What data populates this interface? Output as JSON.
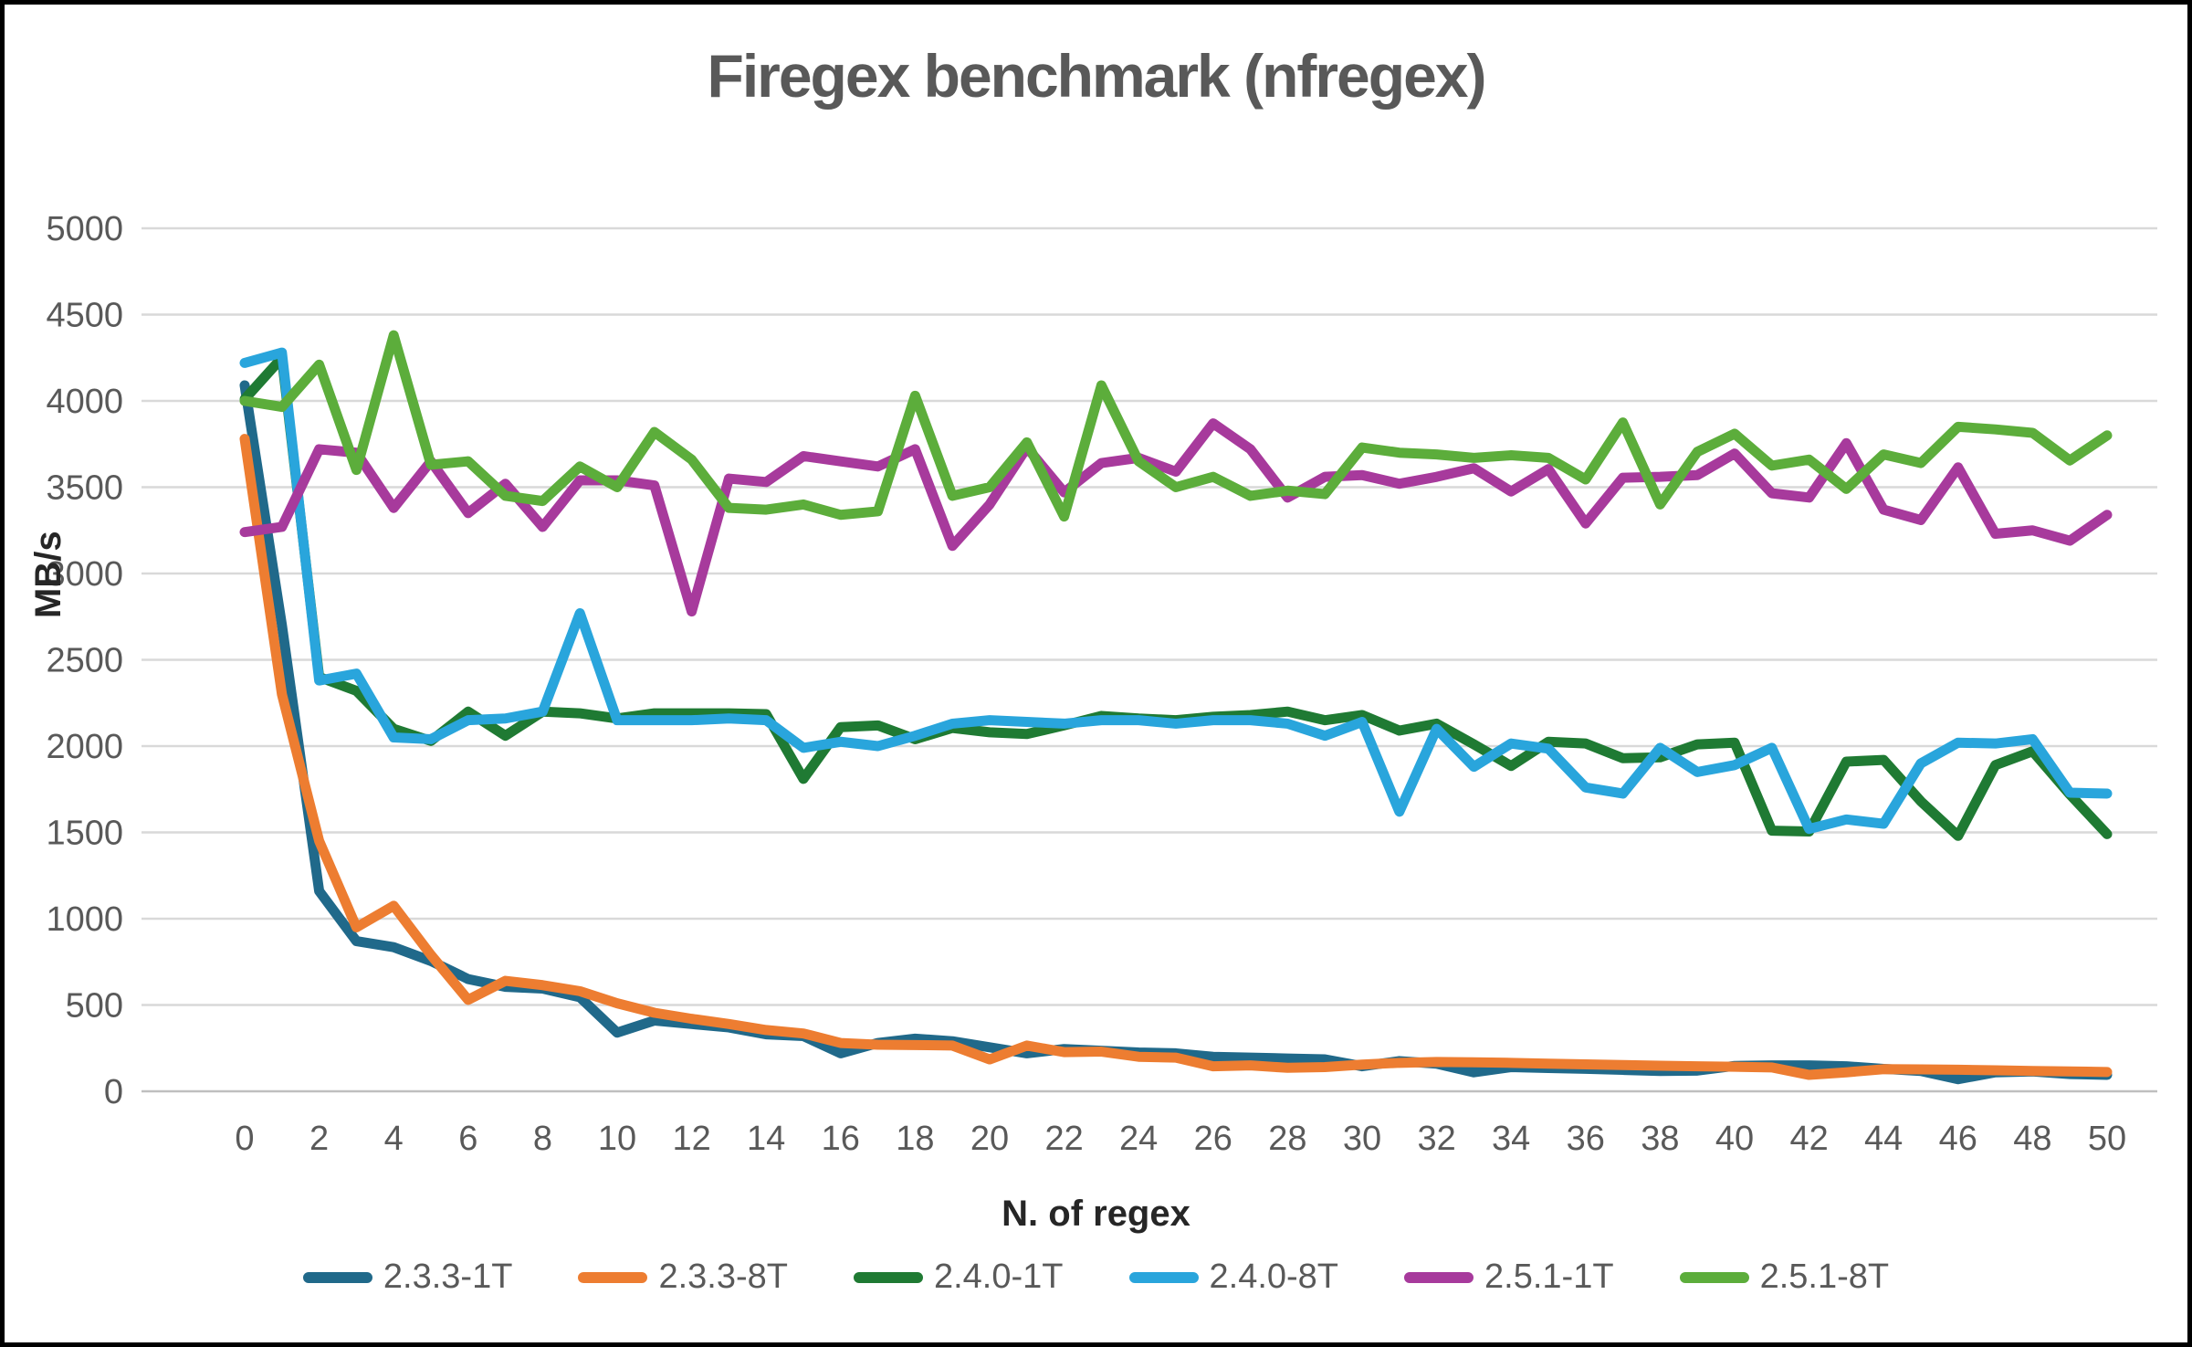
{
  "window": {
    "background": "#ffffff",
    "border_color": "#000000"
  },
  "styles": {
    "title_color": "#595959",
    "tick_label_color": "#595959",
    "axis_title_color": "#262626",
    "gridline_color": "#D9D9D9",
    "axis_line_color": "#BFBFBF",
    "line_width": 11
  },
  "chart_data": {
    "type": "line",
    "title": "Firegex benchmark (nfregex)",
    "xlabel": "N. of regex",
    "ylabel": "MB/s",
    "x": [
      0,
      1,
      2,
      3,
      4,
      5,
      6,
      7,
      8,
      9,
      10,
      11,
      12,
      13,
      14,
      15,
      16,
      17,
      18,
      19,
      20,
      21,
      22,
      23,
      24,
      25,
      26,
      27,
      28,
      29,
      30,
      31,
      32,
      33,
      34,
      35,
      36,
      37,
      38,
      39,
      40,
      41,
      42,
      43,
      44,
      45,
      46,
      47,
      48,
      49,
      50
    ],
    "x_tick_step": 2,
    "ylim": [
      0,
      5000
    ],
    "y_tick_step": 500,
    "grid": "horizontal",
    "legend_position": "bottom",
    "series": [
      {
        "name": "2.3.3-1T",
        "color": "#20698A",
        "values": [
          4090,
          2700,
          1160,
          870,
          835,
          755,
          650,
          605,
          595,
          545,
          340,
          410,
          390,
          370,
          330,
          320,
          220,
          280,
          305,
          290,
          255,
          220,
          245,
          235,
          225,
          220,
          200,
          195,
          190,
          185,
          145,
          175,
          160,
          110,
          140,
          135,
          130,
          124,
          118,
          120,
          147,
          150,
          150,
          145,
          130,
          118,
          70,
          110,
          115,
          100,
          95
        ]
      },
      {
        "name": "2.3.3-8T",
        "color": "#ED7D31",
        "values": [
          3780,
          2300,
          1450,
          950,
          1075,
          790,
          530,
          640,
          615,
          580,
          510,
          455,
          420,
          390,
          355,
          335,
          280,
          270,
          268,
          265,
          185,
          265,
          227,
          230,
          200,
          195,
          145,
          150,
          136,
          140,
          155,
          165,
          170,
          168,
          165,
          160,
          156,
          152,
          148,
          145,
          142,
          138,
          95,
          110,
          128,
          127,
          125,
          122,
          118,
          115,
          112
        ]
      },
      {
        "name": "2.4.0-1T",
        "color": "#1F7A33",
        "values": [
          4010,
          4250,
          2400,
          2320,
          2100,
          2030,
          2200,
          2060,
          2200,
          2190,
          2160,
          2190,
          2190,
          2190,
          2185,
          1810,
          2110,
          2120,
          2040,
          2105,
          2080,
          2070,
          2120,
          2175,
          2160,
          2150,
          2170,
          2180,
          2200,
          2150,
          2180,
          2090,
          2130,
          2010,
          1885,
          2025,
          2015,
          1930,
          1935,
          2010,
          2020,
          1510,
          1505,
          1910,
          1920,
          1680,
          1480,
          1890,
          1970,
          1720,
          1490
        ]
      },
      {
        "name": "2.4.0-8T",
        "color": "#29A5DC",
        "values": [
          4220,
          4280,
          2380,
          2420,
          2050,
          2040,
          2150,
          2160,
          2200,
          2770,
          2150,
          2150,
          2150,
          2160,
          2150,
          1990,
          2025,
          2000,
          2060,
          2130,
          2150,
          2140,
          2130,
          2150,
          2150,
          2130,
          2150,
          2150,
          2130,
          2060,
          2140,
          1620,
          2100,
          1880,
          2015,
          1985,
          1760,
          1725,
          1990,
          1850,
          1890,
          1990,
          1520,
          1575,
          1550,
          1900,
          2020,
          2015,
          2040,
          1730,
          1725
        ]
      },
      {
        "name": "2.5.1-1T",
        "color": "#A73A9C",
        "values": [
          3240,
          3270,
          3720,
          3700,
          3380,
          3650,
          3350,
          3520,
          3270,
          3540,
          3540,
          3510,
          2780,
          3550,
          3530,
          3680,
          3650,
          3620,
          3720,
          3160,
          3400,
          3730,
          3470,
          3640,
          3670,
          3590,
          3870,
          3720,
          3440,
          3560,
          3570,
          3520,
          3560,
          3610,
          3475,
          3605,
          3290,
          3555,
          3560,
          3570,
          3695,
          3465,
          3440,
          3755,
          3370,
          3310,
          3615,
          3230,
          3250,
          3190,
          3340
        ]
      },
      {
        "name": "2.5.1-8T",
        "color": "#5CAD3B",
        "values": [
          4000,
          3965,
          4210,
          3600,
          4380,
          3630,
          3650,
          3450,
          3420,
          3620,
          3500,
          3820,
          3660,
          3380,
          3370,
          3400,
          3340,
          3360,
          4030,
          3450,
          3500,
          3760,
          3330,
          4090,
          3650,
          3500,
          3560,
          3450,
          3480,
          3460,
          3730,
          3700,
          3690,
          3670,
          3685,
          3670,
          3545,
          3875,
          3400,
          3705,
          3810,
          3625,
          3660,
          3490,
          3690,
          3640,
          3850,
          3835,
          3815,
          3655,
          3800
        ]
      }
    ]
  }
}
